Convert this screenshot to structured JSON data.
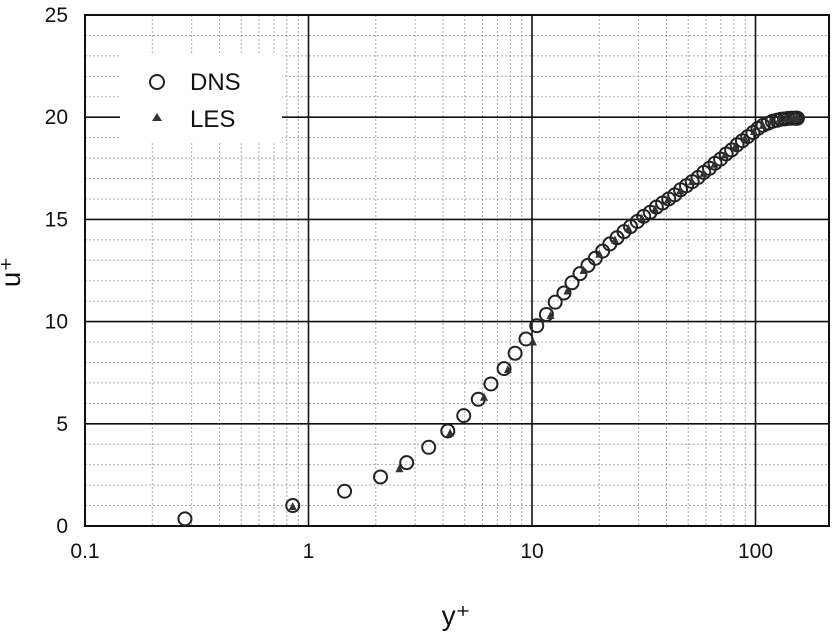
{
  "chart_data": {
    "type": "scatter",
    "xscale": "log",
    "xlim": [
      0.1,
      150
    ],
    "ylim": [
      0,
      25
    ],
    "x_ticks": [
      "0.1",
      "1",
      "10",
      "100"
    ],
    "y_ticks": [
      "0",
      "5",
      "10",
      "15",
      "20",
      "25"
    ],
    "xlabel": "y⁺",
    "ylabel": "u⁺",
    "grid": true,
    "legend_position": "top-left",
    "series": [
      {
        "name": "DNS",
        "marker": "open-circle",
        "color": "#222222",
        "points": [
          [
            0.28,
            0.35
          ],
          [
            0.85,
            1.0
          ],
          [
            1.45,
            1.7
          ],
          [
            2.1,
            2.4
          ],
          [
            2.75,
            3.1
          ],
          [
            3.45,
            3.85
          ],
          [
            4.2,
            4.65
          ],
          [
            4.95,
            5.4
          ],
          [
            5.75,
            6.2
          ],
          [
            6.55,
            6.95
          ],
          [
            7.5,
            7.7
          ],
          [
            8.4,
            8.45
          ],
          [
            9.4,
            9.15
          ],
          [
            10.5,
            9.8
          ],
          [
            11.6,
            10.35
          ],
          [
            12.7,
            10.95
          ],
          [
            13.9,
            11.4
          ],
          [
            15.1,
            11.9
          ],
          [
            16.4,
            12.35
          ],
          [
            17.8,
            12.75
          ],
          [
            19.2,
            13.1
          ],
          [
            20.7,
            13.45
          ],
          [
            22.3,
            13.8
          ],
          [
            24.0,
            14.1
          ],
          [
            25.8,
            14.4
          ],
          [
            27.6,
            14.65
          ],
          [
            29.6,
            14.9
          ],
          [
            31.6,
            15.15
          ],
          [
            33.8,
            15.35
          ],
          [
            36.0,
            15.6
          ],
          [
            38.4,
            15.8
          ],
          [
            40.9,
            16.0
          ],
          [
            43.5,
            16.2
          ],
          [
            46.2,
            16.45
          ],
          [
            49.1,
            16.65
          ],
          [
            52.1,
            16.85
          ],
          [
            55.3,
            17.05
          ],
          [
            58.7,
            17.3
          ],
          [
            62.2,
            17.5
          ],
          [
            65.9,
            17.75
          ],
          [
            69.8,
            17.95
          ],
          [
            73.9,
            18.2
          ],
          [
            78.2,
            18.4
          ],
          [
            82.7,
            18.65
          ],
          [
            87.4,
            18.85
          ],
          [
            92.3,
            19.05
          ],
          [
            97.4,
            19.25
          ],
          [
            102.6,
            19.45
          ],
          [
            108.0,
            19.6
          ],
          [
            113.5,
            19.7
          ],
          [
            119.0,
            19.8
          ],
          [
            124.6,
            19.85
          ],
          [
            130.0,
            19.9
          ],
          [
            135.3,
            19.92
          ],
          [
            140.3,
            19.94
          ],
          [
            144.8,
            19.95
          ],
          [
            148.5,
            19.95
          ],
          [
            151.3,
            19.95
          ],
          [
            153.0,
            19.95
          ],
          [
            154.0,
            19.95
          ]
        ]
      },
      {
        "name": "LES",
        "marker": "filled-triangle",
        "color": "#333333",
        "points": [
          [
            0.85,
            0.95
          ],
          [
            2.55,
            2.8
          ],
          [
            4.3,
            4.55
          ],
          [
            6.1,
            6.3
          ],
          [
            7.8,
            7.65
          ],
          [
            10.1,
            9.0
          ],
          [
            12.1,
            10.3
          ],
          [
            14.4,
            11.5
          ],
          [
            17.0,
            12.5
          ],
          [
            20.0,
            13.3
          ],
          [
            23.5,
            14.0
          ],
          [
            27.0,
            14.55
          ],
          [
            31.0,
            15.05
          ],
          [
            35.5,
            15.5
          ],
          [
            40.5,
            15.95
          ],
          [
            46.0,
            16.4
          ],
          [
            52.0,
            16.85
          ],
          [
            58.5,
            17.25
          ],
          [
            65.5,
            17.7
          ],
          [
            73.0,
            18.15
          ],
          [
            81.0,
            18.55
          ],
          [
            89.5,
            18.95
          ],
          [
            98.5,
            19.3
          ],
          [
            108.0,
            19.6
          ],
          [
            118.0,
            19.8
          ],
          [
            128.0,
            19.9
          ],
          [
            137.0,
            19.93
          ],
          [
            145.0,
            19.95
          ],
          [
            150.0,
            19.95
          ],
          [
            154.0,
            19.95
          ]
        ]
      }
    ]
  }
}
